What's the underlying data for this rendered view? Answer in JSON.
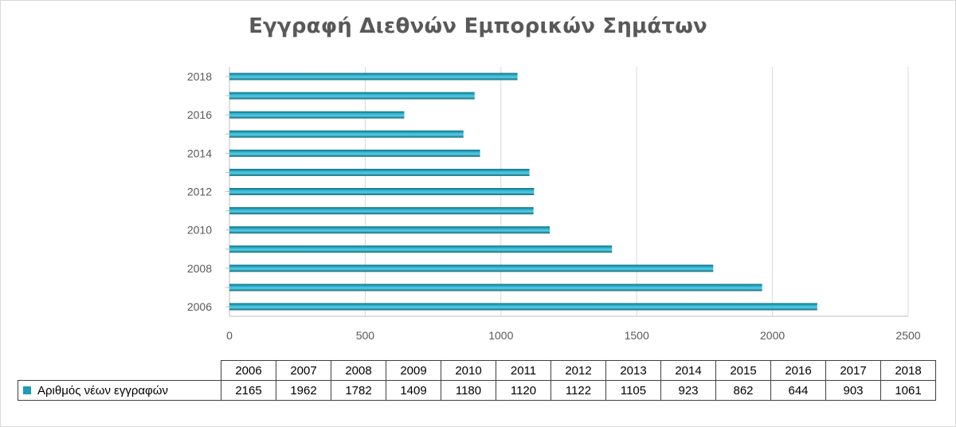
{
  "chart_data": {
    "type": "bar",
    "orientation": "horizontal",
    "title": "Εγγραφή Διεθνών Εμπορικών Σημάτων",
    "categories": [
      "2006",
      "2007",
      "2008",
      "2009",
      "2010",
      "2011",
      "2012",
      "2013",
      "2014",
      "2015",
      "2016",
      "2017",
      "2018"
    ],
    "series": [
      {
        "name": "Αριθμός νέων εγγραφών",
        "values": [
          2165,
          1962,
          1782,
          1409,
          1180,
          1120,
          1122,
          1105,
          923,
          862,
          644,
          903,
          1061
        ]
      }
    ],
    "y_tick_labels": [
      "2006",
      "2008",
      "2010",
      "2012",
      "2014",
      "2016",
      "2018"
    ],
    "x_ticks": [
      "0",
      "500",
      "1000",
      "1500",
      "2000",
      "2500"
    ],
    "xlim": [
      0,
      2500
    ],
    "grid": true,
    "legend": "data-table-below",
    "bar_color": "#1f9bb5"
  }
}
